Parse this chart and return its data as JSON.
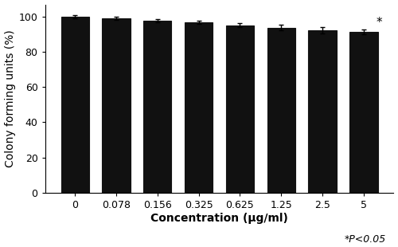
{
  "categories": [
    "0",
    "0.078",
    "0.156",
    "0.325",
    "0.625",
    "1.25",
    "2.5",
    "5"
  ],
  "values": [
    100.0,
    99.0,
    97.8,
    96.8,
    95.2,
    93.8,
    92.5,
    91.5
  ],
  "errors": [
    0.8,
    0.8,
    1.0,
    1.0,
    1.2,
    1.5,
    1.8,
    1.3
  ],
  "bar_color": "#111111",
  "edge_color": "#111111",
  "ylabel": "Colony forming units (%)",
  "xlabel": "Concentration (μg/ml)",
  "ylim": [
    0,
    107
  ],
  "yticks": [
    0,
    20,
    40,
    60,
    80,
    100
  ],
  "annotation_text": "*P<0.05",
  "asterisk_bar_index": 7,
  "bar_width": 0.68,
  "background_color": "#ffffff",
  "fontsize_ylabel": 10,
  "fontsize_xlabel": 10,
  "fontsize_ticks": 9,
  "fontsize_annotation": 9,
  "fontsize_asterisk": 11
}
